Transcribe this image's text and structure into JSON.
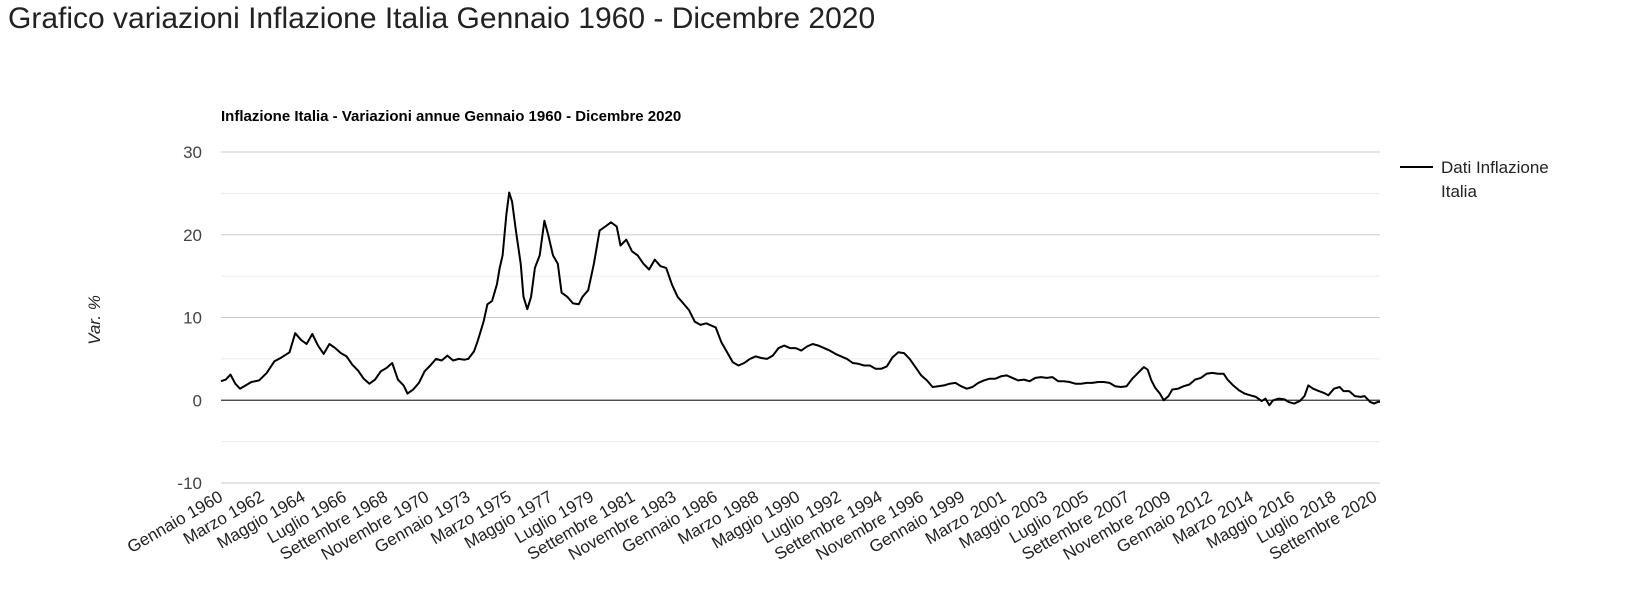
{
  "page": {
    "title": "Grafico variazioni Inflazione Italia Gennaio 1960 - Dicembre 2020"
  },
  "chart_data": {
    "type": "line",
    "title": "Inflazione Italia - Variazioni annue Gennaio 1960 - Dicembre 2020",
    "xlabel": "",
    "ylabel": "Var. %",
    "ylim": [
      -10,
      30
    ],
    "y_ticks": [
      "30",
      "20",
      "10",
      "0",
      "-10"
    ],
    "y_tick_values": [
      30,
      20,
      10,
      0,
      -10
    ],
    "x_range": [
      1960.0,
      2020.917
    ],
    "x_ticks": [
      {
        "label": "Gennaio 1960",
        "x": 1960.0
      },
      {
        "label": "Marzo 1962",
        "x": 1962.167
      },
      {
        "label": "Maggio 1964",
        "x": 1964.333
      },
      {
        "label": "Luglio 1966",
        "x": 1966.5
      },
      {
        "label": "Settembre 1968",
        "x": 1968.667
      },
      {
        "label": "Novembre 1970",
        "x": 1970.833
      },
      {
        "label": "Gennaio 1973",
        "x": 1973.0
      },
      {
        "label": "Marzo 1975",
        "x": 1975.167
      },
      {
        "label": "Maggio 1977",
        "x": 1977.333
      },
      {
        "label": "Luglio 1979",
        "x": 1979.5
      },
      {
        "label": "Settembre 1981",
        "x": 1981.667
      },
      {
        "label": "Novembre 1983",
        "x": 1983.833
      },
      {
        "label": "Gennaio 1986",
        "x": 1986.0
      },
      {
        "label": "Marzo 1988",
        "x": 1988.167
      },
      {
        "label": "Maggio 1990",
        "x": 1990.333
      },
      {
        "label": "Luglio 1992",
        "x": 1992.5
      },
      {
        "label": "Settembre 1994",
        "x": 1994.667
      },
      {
        "label": "Novembre 1996",
        "x": 1996.833
      },
      {
        "label": "Gennaio 1999",
        "x": 1999.0
      },
      {
        "label": "Marzo 2001",
        "x": 2001.167
      },
      {
        "label": "Maggio 2003",
        "x": 2003.333
      },
      {
        "label": "Luglio 2005",
        "x": 2005.5
      },
      {
        "label": "Settembre 2007",
        "x": 2007.667
      },
      {
        "label": "Novembre 2009",
        "x": 2009.833
      },
      {
        "label": "Gennaio 2012",
        "x": 2012.0
      },
      {
        "label": "Marzo 2014",
        "x": 2014.167
      },
      {
        "label": "Maggio 2016",
        "x": 2016.333
      },
      {
        "label": "Luglio 2018",
        "x": 2018.5
      },
      {
        "label": "Settembre 2020",
        "x": 2020.667
      }
    ],
    "grid": true,
    "legend_position": "right",
    "series": [
      {
        "name": "Dati Inflazione Italia",
        "color": "#000000",
        "points": [
          [
            1960.0,
            2.3
          ],
          [
            1960.25,
            2.5
          ],
          [
            1960.5,
            3.1
          ],
          [
            1960.75,
            2.0
          ],
          [
            1961.0,
            1.4
          ],
          [
            1961.3,
            1.8
          ],
          [
            1961.6,
            2.2
          ],
          [
            1962.0,
            2.4
          ],
          [
            1962.4,
            3.3
          ],
          [
            1962.8,
            4.7
          ],
          [
            1963.2,
            5.2
          ],
          [
            1963.6,
            5.8
          ],
          [
            1963.9,
            8.1
          ],
          [
            1964.2,
            7.3
          ],
          [
            1964.5,
            6.8
          ],
          [
            1964.8,
            8.0
          ],
          [
            1965.1,
            6.6
          ],
          [
            1965.4,
            5.6
          ],
          [
            1965.7,
            6.8
          ],
          [
            1966.0,
            6.3
          ],
          [
            1966.3,
            5.7
          ],
          [
            1966.6,
            5.3
          ],
          [
            1966.9,
            4.3
          ],
          [
            1967.2,
            3.6
          ],
          [
            1967.5,
            2.6
          ],
          [
            1967.8,
            2.0
          ],
          [
            1968.1,
            2.5
          ],
          [
            1968.4,
            3.5
          ],
          [
            1968.7,
            3.9
          ],
          [
            1969.0,
            4.5
          ],
          [
            1969.3,
            2.5
          ],
          [
            1969.6,
            1.8
          ],
          [
            1969.8,
            0.8
          ],
          [
            1970.1,
            1.3
          ],
          [
            1970.4,
            2.1
          ],
          [
            1970.7,
            3.5
          ],
          [
            1971.0,
            4.2
          ],
          [
            1971.3,
            5.0
          ],
          [
            1971.6,
            4.8
          ],
          [
            1971.9,
            5.4
          ],
          [
            1972.2,
            4.8
          ],
          [
            1972.5,
            5.0
          ],
          [
            1972.8,
            4.9
          ],
          [
            1973.0,
            5.0
          ],
          [
            1973.3,
            5.9
          ],
          [
            1973.5,
            7.2
          ],
          [
            1973.8,
            9.5
          ],
          [
            1974.0,
            11.6
          ],
          [
            1974.25,
            12.0
          ],
          [
            1974.5,
            14.0
          ],
          [
            1974.65,
            16.0
          ],
          [
            1974.8,
            17.5
          ],
          [
            1975.0,
            22.5
          ],
          [
            1975.15,
            25.1
          ],
          [
            1975.3,
            24.0
          ],
          [
            1975.5,
            20.5
          ],
          [
            1975.75,
            16.5
          ],
          [
            1975.9,
            12.5
          ],
          [
            1976.1,
            11.0
          ],
          [
            1976.3,
            12.5
          ],
          [
            1976.5,
            16.0
          ],
          [
            1976.75,
            17.5
          ],
          [
            1977.0,
            21.7
          ],
          [
            1977.2,
            20.0
          ],
          [
            1977.45,
            17.5
          ],
          [
            1977.7,
            16.5
          ],
          [
            1977.9,
            13.0
          ],
          [
            1978.2,
            12.5
          ],
          [
            1978.5,
            11.7
          ],
          [
            1978.8,
            11.6
          ],
          [
            1979.0,
            12.5
          ],
          [
            1979.3,
            13.3
          ],
          [
            1979.6,
            16.5
          ],
          [
            1979.9,
            20.5
          ],
          [
            1980.2,
            21.0
          ],
          [
            1980.5,
            21.5
          ],
          [
            1980.8,
            21.0
          ],
          [
            1981.0,
            18.7
          ],
          [
            1981.3,
            19.4
          ],
          [
            1981.6,
            18.0
          ],
          [
            1981.9,
            17.5
          ],
          [
            1982.2,
            16.5
          ],
          [
            1982.5,
            15.8
          ],
          [
            1982.8,
            17.0
          ],
          [
            1983.1,
            16.2
          ],
          [
            1983.4,
            16.0
          ],
          [
            1983.7,
            14.0
          ],
          [
            1984.0,
            12.5
          ],
          [
            1984.3,
            11.7
          ],
          [
            1984.6,
            10.9
          ],
          [
            1984.9,
            9.5
          ],
          [
            1985.2,
            9.1
          ],
          [
            1985.5,
            9.3
          ],
          [
            1985.8,
            9.0
          ],
          [
            1986.0,
            8.8
          ],
          [
            1986.3,
            7.0
          ],
          [
            1986.6,
            5.8
          ],
          [
            1986.9,
            4.6
          ],
          [
            1987.2,
            4.2
          ],
          [
            1987.5,
            4.5
          ],
          [
            1987.8,
            5.0
          ],
          [
            1988.1,
            5.3
          ],
          [
            1988.4,
            5.1
          ],
          [
            1988.7,
            5.0
          ],
          [
            1989.0,
            5.4
          ],
          [
            1989.3,
            6.3
          ],
          [
            1989.6,
            6.6
          ],
          [
            1989.9,
            6.3
          ],
          [
            1990.2,
            6.3
          ],
          [
            1990.5,
            6.0
          ],
          [
            1990.8,
            6.5
          ],
          [
            1991.1,
            6.8
          ],
          [
            1991.4,
            6.6
          ],
          [
            1991.7,
            6.3
          ],
          [
            1992.0,
            6.0
          ],
          [
            1992.3,
            5.6
          ],
          [
            1992.6,
            5.3
          ],
          [
            1992.9,
            5.0
          ],
          [
            1993.2,
            4.5
          ],
          [
            1993.5,
            4.4
          ],
          [
            1993.8,
            4.2
          ],
          [
            1994.1,
            4.2
          ],
          [
            1994.4,
            3.8
          ],
          [
            1994.7,
            3.8
          ],
          [
            1995.0,
            4.1
          ],
          [
            1995.3,
            5.2
          ],
          [
            1995.6,
            5.8
          ],
          [
            1995.9,
            5.7
          ],
          [
            1996.2,
            5.0
          ],
          [
            1996.5,
            4.0
          ],
          [
            1996.8,
            3.0
          ],
          [
            1997.1,
            2.4
          ],
          [
            1997.4,
            1.6
          ],
          [
            1997.7,
            1.7
          ],
          [
            1998.0,
            1.8
          ],
          [
            1998.3,
            2.0
          ],
          [
            1998.6,
            2.1
          ],
          [
            1998.9,
            1.7
          ],
          [
            1999.2,
            1.4
          ],
          [
            1999.5,
            1.6
          ],
          [
            1999.8,
            2.1
          ],
          [
            2000.1,
            2.4
          ],
          [
            2000.4,
            2.6
          ],
          [
            2000.7,
            2.6
          ],
          [
            2001.0,
            2.9
          ],
          [
            2001.3,
            3.0
          ],
          [
            2001.6,
            2.7
          ],
          [
            2001.9,
            2.4
          ],
          [
            2002.2,
            2.5
          ],
          [
            2002.5,
            2.3
          ],
          [
            2002.8,
            2.7
          ],
          [
            2003.1,
            2.8
          ],
          [
            2003.4,
            2.7
          ],
          [
            2003.7,
            2.8
          ],
          [
            2004.0,
            2.3
          ],
          [
            2004.3,
            2.3
          ],
          [
            2004.6,
            2.2
          ],
          [
            2004.9,
            2.0
          ],
          [
            2005.2,
            2.0
          ],
          [
            2005.5,
            2.1
          ],
          [
            2005.8,
            2.1
          ],
          [
            2006.1,
            2.2
          ],
          [
            2006.4,
            2.2
          ],
          [
            2006.7,
            2.1
          ],
          [
            2007.0,
            1.7
          ],
          [
            2007.3,
            1.6
          ],
          [
            2007.6,
            1.7
          ],
          [
            2007.9,
            2.6
          ],
          [
            2008.2,
            3.3
          ],
          [
            2008.5,
            4.0
          ],
          [
            2008.7,
            3.7
          ],
          [
            2008.9,
            2.4
          ],
          [
            2009.1,
            1.5
          ],
          [
            2009.35,
            0.8
          ],
          [
            2009.55,
            0.0
          ],
          [
            2009.8,
            0.5
          ],
          [
            2010.0,
            1.3
          ],
          [
            2010.3,
            1.4
          ],
          [
            2010.6,
            1.7
          ],
          [
            2010.9,
            1.9
          ],
          [
            2011.2,
            2.5
          ],
          [
            2011.5,
            2.7
          ],
          [
            2011.8,
            3.2
          ],
          [
            2012.1,
            3.3
          ],
          [
            2012.4,
            3.2
          ],
          [
            2012.7,
            3.2
          ],
          [
            2012.9,
            2.5
          ],
          [
            2013.2,
            1.8
          ],
          [
            2013.5,
            1.2
          ],
          [
            2013.8,
            0.8
          ],
          [
            2014.1,
            0.6
          ],
          [
            2014.4,
            0.4
          ],
          [
            2014.7,
            -0.1
          ],
          [
            2014.9,
            0.2
          ],
          [
            2015.1,
            -0.6
          ],
          [
            2015.3,
            0.0
          ],
          [
            2015.6,
            0.2
          ],
          [
            2015.9,
            0.1
          ],
          [
            2016.1,
            -0.2
          ],
          [
            2016.4,
            -0.4
          ],
          [
            2016.7,
            -0.1
          ],
          [
            2016.95,
            0.5
          ],
          [
            2017.15,
            1.8
          ],
          [
            2017.4,
            1.4
          ],
          [
            2017.7,
            1.1
          ],
          [
            2017.95,
            0.9
          ],
          [
            2018.2,
            0.6
          ],
          [
            2018.5,
            1.4
          ],
          [
            2018.8,
            1.6
          ],
          [
            2019.0,
            1.1
          ],
          [
            2019.3,
            1.1
          ],
          [
            2019.6,
            0.5
          ],
          [
            2019.9,
            0.4
          ],
          [
            2020.1,
            0.5
          ],
          [
            2020.4,
            -0.2
          ],
          [
            2020.6,
            -0.4
          ],
          [
            2020.8,
            -0.2
          ],
          [
            2020.917,
            -0.2
          ]
        ]
      }
    ]
  }
}
